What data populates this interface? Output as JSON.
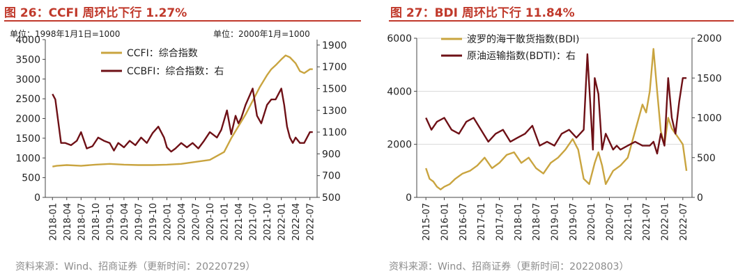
{
  "fig26": {
    "title": "图 26：CCFI 周环比下行 1.27%",
    "source": "资料来源：Wind、招商证券（更新时间：20220729）"
  },
  "fig27": {
    "title": "图 27：BDI 周环比下行 11.84%",
    "source": "资料来源：Wind、招商证券（更新时间：20220803）"
  },
  "colors": {
    "gold": "#c9a43f",
    "maroon": "#6e1016",
    "title_red": "#c0392b",
    "grid": "#d9d9d9"
  },
  "chart_data": [
    {
      "type": "line",
      "id": "ccfi",
      "note_left": "单位：1998年1月1日=1000",
      "note_right": "单位：2000年1月=1000",
      "xticks": [
        "2018-01",
        "2018-04",
        "2018-07",
        "2018-10",
        "2019-01",
        "2019-04",
        "2019-07",
        "2019-10",
        "2020-01",
        "2020-04",
        "2020-07",
        "2020-10",
        "2021-01",
        "2021-04",
        "2021-07",
        "2021-10",
        "2022-01",
        "2022-04",
        "2022-07"
      ],
      "ylim": [
        0,
        4000
      ],
      "yticks": [
        0,
        500,
        1000,
        1500,
        2000,
        2500,
        3000,
        3500,
        4000
      ],
      "y2lim": [
        500,
        1950
      ],
      "y2ticks": [
        500,
        700,
        900,
        1100,
        1300,
        1500,
        1700,
        1900
      ],
      "series": [
        {
          "name": "CCFI：综合指数",
          "axis": "left",
          "color_key": "gold",
          "x": [
            0,
            0.3,
            1,
            2,
            3,
            4,
            5,
            6,
            7,
            8,
            9,
            10,
            11,
            12,
            12.5,
            13,
            13.5,
            14,
            14.5,
            15,
            15.3,
            15.6,
            16,
            16.3,
            16.6,
            17,
            17.3,
            17.6,
            18,
            18.2
          ],
          "y": [
            780,
            800,
            820,
            800,
            830,
            850,
            830,
            820,
            820,
            830,
            850,
            900,
            950,
            1150,
            1500,
            1800,
            2100,
            2450,
            2800,
            3100,
            3250,
            3350,
            3500,
            3600,
            3550,
            3400,
            3200,
            3150,
            3250,
            3250
          ]
        },
        {
          "name": "CCBFI：综合指数：右",
          "axis": "right",
          "color_key": "maroon",
          "x": [
            0,
            0.2,
            0.4,
            0.6,
            0.9,
            1.3,
            1.7,
            2,
            2.4,
            2.8,
            3.2,
            3.6,
            4,
            4.3,
            4.6,
            5,
            5.4,
            5.8,
            6.2,
            6.6,
            7,
            7.4,
            7.8,
            8,
            8.3,
            8.6,
            9,
            9.4,
            9.8,
            10.2,
            10.6,
            11,
            11.2,
            11.5,
            11.8,
            12.2,
            12.5,
            12.8,
            13,
            13.2,
            13.5,
            14,
            14.3,
            14.6,
            15,
            15.3,
            15.6,
            16,
            16.2,
            16.4,
            16.6,
            16.8,
            17,
            17.3,
            17.6,
            18,
            18.2
          ],
          "y": [
            1450,
            1400,
            1200,
            1000,
            1000,
            980,
            1020,
            1100,
            950,
            970,
            1050,
            1020,
            1000,
            930,
            1000,
            960,
            1020,
            980,
            1050,
            1000,
            1090,
            1150,
            1050,
            960,
            920,
            950,
            1000,
            960,
            1000,
            950,
            1020,
            1100,
            1080,
            1050,
            1120,
            1300,
            1080,
            1250,
            1180,
            1230,
            1350,
            1500,
            1250,
            1180,
            1350,
            1400,
            1400,
            1500,
            1350,
            1150,
            1050,
            1000,
            1050,
            1000,
            1000,
            1100,
            1100
          ]
        }
      ]
    },
    {
      "type": "line",
      "id": "bdi",
      "xticks": [
        "2015-07",
        "2016-01",
        "2016-07",
        "2017-01",
        "2017-07",
        "2018-01",
        "2018-07",
        "2019-01",
        "2019-07",
        "2020-01",
        "2020-07",
        "2021-01",
        "2021-07",
        "2022-01",
        "2022-07"
      ],
      "ylim": [
        0,
        6000
      ],
      "yticks": [
        0,
        2000,
        4000,
        6000
      ],
      "y2lim": [
        0,
        2000
      ],
      "y2ticks": [
        0,
        500,
        1000,
        1500,
        2000
      ],
      "series": [
        {
          "name": "波罗的海干散货指数(BDI)",
          "axis": "left",
          "color_key": "gold",
          "x": [
            0,
            0.2,
            0.4,
            0.6,
            0.8,
            1,
            1.3,
            1.6,
            2,
            2.4,
            2.8,
            3.2,
            3.6,
            4,
            4.4,
            4.8,
            5.2,
            5.6,
            6,
            6.4,
            6.8,
            7.2,
            7.6,
            8,
            8.3,
            8.6,
            8.9,
            9.2,
            9.4,
            9.6,
            9.8,
            10.2,
            10.6,
            11,
            11.4,
            11.8,
            12,
            12.2,
            12.4,
            12.6,
            12.8,
            13,
            13.2,
            13.4,
            13.6,
            13.8,
            14,
            14.2
          ],
          "y": [
            1100,
            700,
            600,
            400,
            300,
            400,
            500,
            700,
            900,
            1000,
            1200,
            1500,
            1100,
            1300,
            1600,
            1700,
            1300,
            1500,
            1100,
            900,
            1300,
            1500,
            1800,
            2200,
            1800,
            700,
            500,
            1300,
            1700,
            1200,
            500,
            1000,
            1200,
            1500,
            2500,
            3500,
            3200,
            4000,
            5600,
            4000,
            2500,
            2000,
            3000,
            2600,
            2400,
            2200,
            2000,
            1000
          ]
        },
        {
          "name": "原油运输指数(BDTI)：右",
          "axis": "right",
          "color_key": "maroon",
          "x": [
            0,
            0.3,
            0.6,
            1,
            1.4,
            1.8,
            2.2,
            2.6,
            3,
            3.4,
            3.8,
            4.2,
            4.6,
            5,
            5.4,
            5.8,
            6.2,
            6.6,
            7,
            7.4,
            7.8,
            8.2,
            8.6,
            8.8,
            9,
            9.1,
            9.2,
            9.4,
            9.6,
            9.8,
            10,
            10.2,
            10.4,
            10.6,
            11,
            11.4,
            11.8,
            12.2,
            12.4,
            12.6,
            12.8,
            13,
            13.2,
            13.4,
            13.6,
            13.8,
            14,
            14.2
          ],
          "y": [
            1000,
            850,
            950,
            1000,
            850,
            800,
            950,
            1000,
            850,
            700,
            800,
            850,
            700,
            750,
            800,
            900,
            650,
            700,
            650,
            800,
            850,
            750,
            850,
            1800,
            1000,
            600,
            1500,
            1300,
            600,
            800,
            700,
            600,
            650,
            600,
            650,
            700,
            650,
            650,
            700,
            550,
            800,
            650,
            1500,
            1000,
            800,
            1200,
            1500,
            1500
          ]
        }
      ]
    }
  ]
}
